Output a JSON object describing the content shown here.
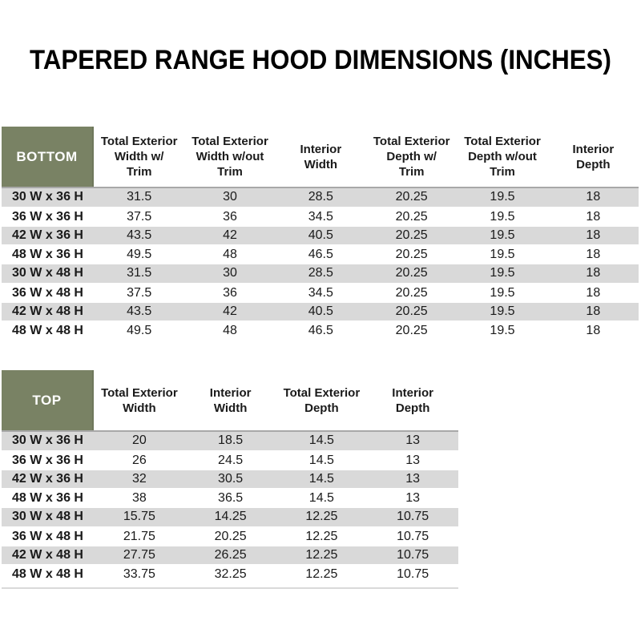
{
  "title": "TAPERED RANGE HOOD DIMENSIONS (INCHES)",
  "colors": {
    "header_green": "#798264",
    "stripe_gray": "#d9d9d9",
    "header_rule_gray": "#a8a8a8",
    "text_black": "#000000",
    "label_text_white": "#ffffff"
  },
  "bottom_table": {
    "label": "BOTTOM",
    "columns": [
      "Total Exterior\nWidth w/\nTrim",
      "Total Exterior\nWidth w/out\nTrim",
      "Interior\nWidth",
      "Total Exterior\nDepth w/\nTrim",
      "Total Exterior\nDepth w/out\nTrim",
      "Interior\nDepth"
    ],
    "rows": [
      {
        "label": "30 W x 36 H",
        "values": [
          "31.5",
          "30",
          "28.5",
          "20.25",
          "19.5",
          "18"
        ]
      },
      {
        "label": "36 W x 36 H",
        "values": [
          "37.5",
          "36",
          "34.5",
          "20.25",
          "19.5",
          "18"
        ]
      },
      {
        "label": "42 W x 36 H",
        "values": [
          "43.5",
          "42",
          "40.5",
          "20.25",
          "19.5",
          "18"
        ]
      },
      {
        "label": "48 W x 36 H",
        "values": [
          "49.5",
          "48",
          "46.5",
          "20.25",
          "19.5",
          "18"
        ]
      },
      {
        "label": "30 W x 48 H",
        "values": [
          "31.5",
          "30",
          "28.5",
          "20.25",
          "19.5",
          "18"
        ]
      },
      {
        "label": "36 W x 48 H",
        "values": [
          "37.5",
          "36",
          "34.5",
          "20.25",
          "19.5",
          "18"
        ]
      },
      {
        "label": "42 W x 48 H",
        "values": [
          "43.5",
          "42",
          "40.5",
          "20.25",
          "19.5",
          "18"
        ]
      },
      {
        "label": "48 W x 48 H",
        "values": [
          "49.5",
          "48",
          "46.5",
          "20.25",
          "19.5",
          "18"
        ]
      }
    ]
  },
  "top_table": {
    "label": "TOP",
    "columns": [
      "Total Exterior\nWidth",
      "Interior\nWidth",
      "Total Exterior\nDepth",
      "Interior\nDepth"
    ],
    "rows": [
      {
        "label": "30 W x 36 H",
        "values": [
          "20",
          "18.5",
          "14.5",
          "13"
        ]
      },
      {
        "label": "36 W x 36 H",
        "values": [
          "26",
          "24.5",
          "14.5",
          "13"
        ]
      },
      {
        "label": "42 W x 36 H",
        "values": [
          "32",
          "30.5",
          "14.5",
          "13"
        ]
      },
      {
        "label": "48 W x 36 H",
        "values": [
          "38",
          "36.5",
          "14.5",
          "13"
        ]
      },
      {
        "label": "30 W x 48 H",
        "values": [
          "15.75",
          "14.25",
          "12.25",
          "10.75"
        ]
      },
      {
        "label": "36 W x 48 H",
        "values": [
          "21.75",
          "20.25",
          "12.25",
          "10.75"
        ]
      },
      {
        "label": "42 W x 48 H",
        "values": [
          "27.75",
          "26.25",
          "12.25",
          "10.75"
        ]
      },
      {
        "label": "48 W x 48 H",
        "values": [
          "33.75",
          "32.25",
          "12.25",
          "10.75"
        ]
      }
    ]
  }
}
